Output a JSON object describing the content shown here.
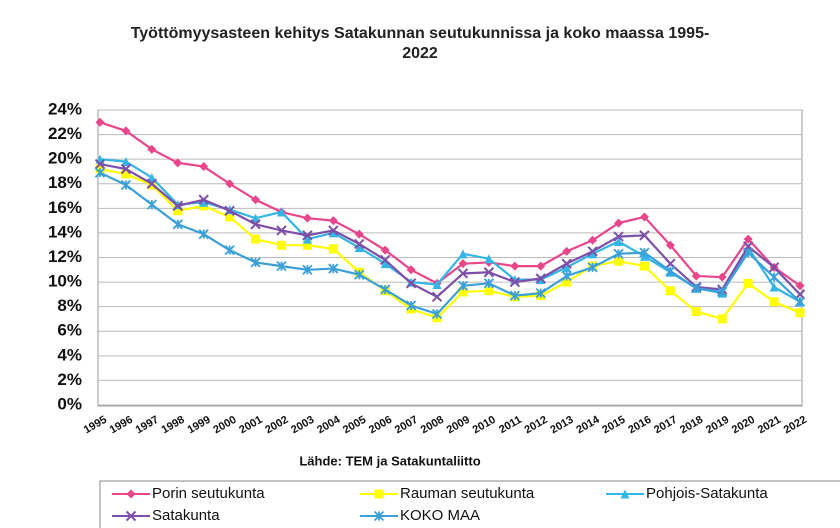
{
  "chart_data": {
    "type": "line",
    "title": "Työttömyysasteen kehitys Satakunnan seutukunnissa ja koko maassa 1995-2022",
    "source": "Lähde: TEM ja Satakuntaliitto",
    "categories": [
      "1995",
      "1996",
      "1997",
      "1998",
      "1999",
      "2000",
      "2001",
      "2002",
      "2003",
      "2004",
      "2005",
      "2006",
      "2007",
      "2008",
      "2009",
      "2010",
      "2011",
      "2012",
      "2013",
      "2014",
      "2015",
      "2016",
      "2017",
      "2018",
      "2019",
      "2020",
      "2021",
      "2022"
    ],
    "ylim": [
      0,
      24
    ],
    "yticks": [
      {
        "value": 0,
        "label": "0%"
      },
      {
        "value": 2,
        "label": "2%"
      },
      {
        "value": 4,
        "label": "4%"
      },
      {
        "value": 6,
        "label": "6%"
      },
      {
        "value": 8,
        "label": "8%"
      },
      {
        "value": 10,
        "label": "10%"
      },
      {
        "value": 12,
        "label": "12%"
      },
      {
        "value": 14,
        "label": "14%"
      },
      {
        "value": 16,
        "label": "16%"
      },
      {
        "value": 18,
        "label": "18%"
      },
      {
        "value": 20,
        "label": "20%"
      },
      {
        "value": 22,
        "label": "22%"
      },
      {
        "value": 24,
        "label": "24%"
      }
    ],
    "grid": true,
    "legend": "bottom",
    "series": [
      {
        "name": "Porin seutukunta",
        "color": "#e8458b",
        "marker": "diamond",
        "values": [
          23,
          22.3,
          20.8,
          19.7,
          19.4,
          18,
          16.7,
          15.7,
          15.2,
          15,
          13.9,
          12.6,
          11,
          9.9,
          11.5,
          11.6,
          11.3,
          11.3,
          12.5,
          13.4,
          14.8,
          15.3,
          13,
          10.5,
          10.4,
          13.5,
          11.2,
          9.7
        ]
      },
      {
        "name": "Rauman seutukunta",
        "color": "#ffff00",
        "marker": "square",
        "values": [
          19.2,
          18.8,
          17.9,
          15.8,
          16.2,
          15.3,
          13.5,
          13,
          13,
          12.7,
          10.8,
          9.3,
          7.8,
          7.1,
          9.2,
          9.3,
          8.8,
          8.9,
          10,
          11.3,
          11.7,
          11.3,
          9.3,
          7.6,
          7,
          9.9,
          8.4,
          7.5
        ]
      },
      {
        "name": "Pohjois-Satakunta",
        "color": "#33b5e5",
        "marker": "triangle",
        "values": [
          20,
          19.8,
          18.5,
          16.3,
          16.5,
          15.9,
          15.2,
          15.7,
          13.5,
          14,
          12.8,
          11.5,
          10,
          9.8,
          12.3,
          11.9,
          10.2,
          10.2,
          11.2,
          12.3,
          13.3,
          12.1,
          10.8,
          9.5,
          9.1,
          12.8,
          9.6,
          8.4
        ]
      },
      {
        "name": "Satakunta",
        "color": "#7d4fa8",
        "marker": "x",
        "values": [
          19.6,
          19.2,
          18,
          16.2,
          16.7,
          15.8,
          14.7,
          14.2,
          13.8,
          14.2,
          13.1,
          11.8,
          9.9,
          8.8,
          10.7,
          10.8,
          10,
          10.3,
          11.5,
          12.5,
          13.7,
          13.8,
          11.5,
          9.6,
          9.4,
          12.9,
          11.2,
          9
        ]
      },
      {
        "name": "KOKO MAA",
        "color": "#3ca0d8",
        "marker": "star",
        "values": [
          18.9,
          17.9,
          16.3,
          14.7,
          13.9,
          12.6,
          11.6,
          11.3,
          11,
          11.1,
          10.6,
          9.4,
          8.1,
          7.4,
          9.7,
          9.9,
          8.9,
          9.1,
          10.5,
          11.2,
          12.3,
          12.4,
          10.9,
          9.5,
          9.2,
          12.4,
          10.4,
          8.4
        ]
      }
    ]
  }
}
